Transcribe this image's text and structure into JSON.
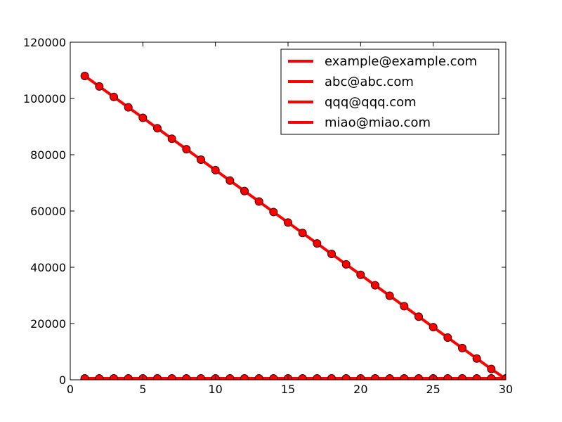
{
  "chart_data": {
    "type": "line",
    "title": "",
    "xlabel": "",
    "ylabel": "",
    "xlim": [
      0,
      30
    ],
    "ylim": [
      0,
      120000
    ],
    "x_ticks": [
      0,
      5,
      10,
      15,
      20,
      25,
      30
    ],
    "y_ticks": [
      0,
      20000,
      40000,
      60000,
      80000,
      100000,
      120000
    ],
    "grid": false,
    "legend_position": "top-right",
    "x": [
      1,
      2,
      3,
      4,
      5,
      6,
      7,
      8,
      9,
      10,
      11,
      12,
      13,
      14,
      15,
      16,
      17,
      18,
      19,
      20,
      21,
      22,
      23,
      24,
      25,
      26,
      27,
      28,
      29,
      30
    ],
    "series": [
      {
        "name": "example@example.com",
        "color": "#ff0000",
        "marker": "circle",
        "values": [
          108000,
          104280,
          100560,
          96840,
          93120,
          89400,
          85680,
          81960,
          78240,
          74520,
          70800,
          67080,
          63360,
          59640,
          55920,
          52200,
          48480,
          44760,
          41040,
          37320,
          33600,
          29880,
          26160,
          22440,
          18720,
          15000,
          11280,
          7560,
          3840,
          300
        ]
      },
      {
        "name": "abc@abc.com",
        "color": "#ff0000",
        "marker": "circle",
        "values": [
          500,
          500,
          500,
          500,
          500,
          500,
          500,
          500,
          500,
          500,
          500,
          500,
          500,
          500,
          500,
          500,
          500,
          500,
          500,
          500,
          500,
          500,
          500,
          500,
          500,
          500,
          500,
          500,
          500,
          500
        ]
      },
      {
        "name": "qqq@qqq.com",
        "color": "#ff0000",
        "marker": "circle",
        "values": [
          300,
          300,
          300,
          300,
          300,
          300,
          300,
          300,
          300,
          300,
          300,
          300,
          300,
          300,
          300,
          300,
          300,
          300,
          300,
          300,
          300,
          300,
          300,
          300,
          300,
          300,
          300,
          300,
          300,
          300
        ]
      },
      {
        "name": "miao@miao.com",
        "color": "#ff0000",
        "marker": "circle",
        "values": [
          100,
          100,
          100,
          100,
          100,
          100,
          100,
          100,
          100,
          100,
          100,
          100,
          100,
          100,
          100,
          100,
          100,
          100,
          100,
          100,
          100,
          100,
          100,
          100,
          100,
          100,
          100,
          100,
          100,
          100
        ]
      }
    ]
  }
}
